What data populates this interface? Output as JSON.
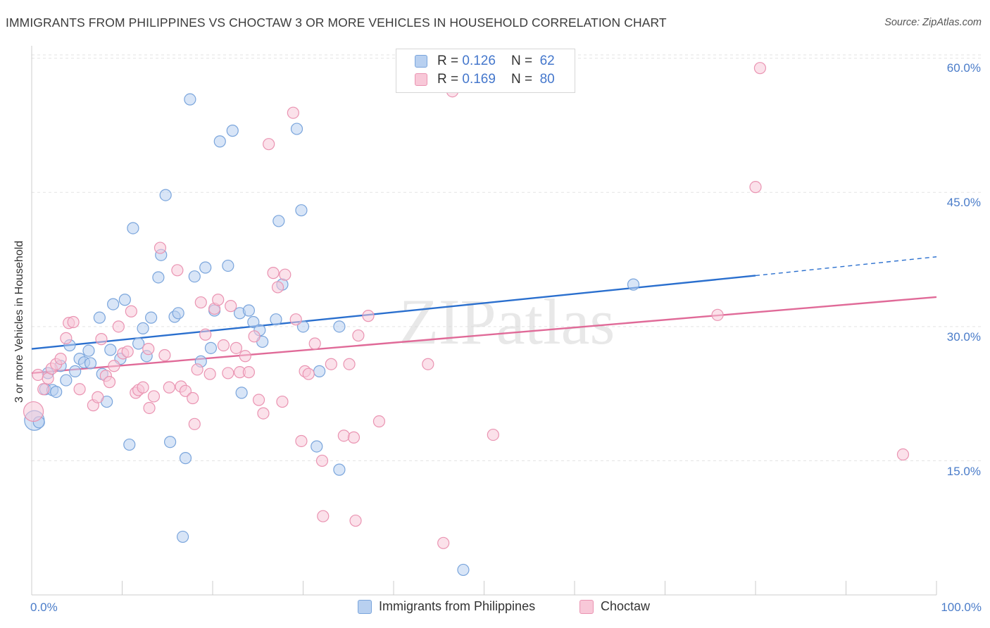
{
  "title": "IMMIGRANTS FROM PHILIPPINES VS CHOCTAW 3 OR MORE VEHICLES IN HOUSEHOLD CORRELATION CHART",
  "source": "Source: ZipAtlas.com",
  "watermark": "ZIPatlas",
  "legend_top": {
    "rows": [
      {
        "r_label": "R =",
        "r_value": "0.126",
        "n_label": "N =",
        "n_value": "62"
      },
      {
        "r_label": "R =",
        "r_value": "0.169",
        "n_label": "N =",
        "n_value": "80"
      }
    ]
  },
  "legend_bottom": [
    "Immigrants from Philippines",
    "Choctaw"
  ],
  "x_tick_labels": {
    "left": "0.0%",
    "right": "100.0%"
  },
  "y_tick_labels": [
    "60.0%",
    "45.0%",
    "30.0%",
    "15.0%"
  ],
  "colors": {
    "blue_fill": "#b8d0f0",
    "blue_stroke": "#7aa5dc",
    "blue_line": "#2a6fce",
    "pink_fill": "#f8c8d8",
    "pink_stroke": "#ea94b2",
    "pink_line": "#e06a98",
    "tick_label": "#4a7cc9",
    "grid": "#e3e3e3"
  },
  "chart_data": {
    "type": "scatter",
    "title": "IMMIGRANTS FROM PHILIPPINES VS CHOCTAW 3 OR MORE VEHICLES IN HOUSEHOLD CORRELATION CHART",
    "xlabel": "",
    "ylabel": "3 or more Vehicles in Household",
    "xlim": [
      0,
      100
    ],
    "ylim": [
      0,
      61
    ],
    "y_ticks": [
      15,
      30,
      45,
      60
    ],
    "grid": true,
    "legend_position": "bottom",
    "series": [
      {
        "name": "Immigrants from Philippines",
        "R": 0.126,
        "N": 62,
        "trend": {
          "x0": 0,
          "y0": 27.5,
          "x1": 80,
          "y1": 35.7,
          "dashed_to_x": 100,
          "dashed_to_y": 37.8
        },
        "points": [
          [
            0.3,
            19.5
          ],
          [
            0.8,
            19.3
          ],
          [
            1.5,
            23.0
          ],
          [
            1.8,
            24.8
          ],
          [
            2.3,
            22.9
          ],
          [
            2.7,
            22.7
          ],
          [
            3.2,
            25.6
          ],
          [
            3.8,
            24.0
          ],
          [
            4.2,
            27.9
          ],
          [
            4.8,
            25.0
          ],
          [
            5.3,
            26.4
          ],
          [
            5.8,
            26.0
          ],
          [
            6.3,
            27.3
          ],
          [
            6.5,
            25.9
          ],
          [
            7.5,
            31.0
          ],
          [
            7.8,
            24.7
          ],
          [
            8.3,
            21.6
          ],
          [
            8.7,
            27.4
          ],
          [
            9.0,
            32.5
          ],
          [
            9.8,
            26.4
          ],
          [
            10.3,
            33.0
          ],
          [
            10.8,
            16.8
          ],
          [
            11.2,
            41.0
          ],
          [
            11.8,
            28.1
          ],
          [
            12.3,
            29.8
          ],
          [
            12.7,
            26.7
          ],
          [
            13.2,
            31.0
          ],
          [
            14.0,
            35.5
          ],
          [
            14.3,
            38.0
          ],
          [
            14.8,
            44.7
          ],
          [
            15.3,
            17.1
          ],
          [
            15.8,
            31.1
          ],
          [
            16.2,
            31.5
          ],
          [
            16.7,
            6.5
          ],
          [
            17.0,
            15.3
          ],
          [
            17.5,
            55.4
          ],
          [
            18.0,
            35.6
          ],
          [
            18.7,
            26.1
          ],
          [
            19.2,
            36.6
          ],
          [
            19.8,
            27.6
          ],
          [
            20.2,
            31.8
          ],
          [
            20.8,
            50.7
          ],
          [
            21.7,
            36.8
          ],
          [
            22.2,
            51.9
          ],
          [
            23.0,
            31.5
          ],
          [
            23.2,
            22.6
          ],
          [
            24.0,
            31.8
          ],
          [
            24.5,
            30.5
          ],
          [
            25.2,
            29.6
          ],
          [
            25.5,
            28.3
          ],
          [
            27.0,
            30.8
          ],
          [
            27.3,
            41.8
          ],
          [
            27.7,
            34.7
          ],
          [
            29.3,
            52.1
          ],
          [
            29.8,
            43.0
          ],
          [
            30.0,
            30.0
          ],
          [
            31.5,
            16.6
          ],
          [
            31.8,
            25.0
          ],
          [
            34.0,
            14.0
          ],
          [
            34.0,
            30.0
          ],
          [
            47.7,
            2.8
          ],
          [
            66.5,
            34.7
          ]
        ]
      },
      {
        "name": "Choctaw",
        "R": 0.169,
        "N": 80,
        "trend": {
          "x0": 0,
          "y0": 24.8,
          "x1": 100,
          "y1": 33.3
        },
        "points": [
          [
            0.2,
            20.5
          ],
          [
            0.7,
            24.6
          ],
          [
            1.3,
            23.0
          ],
          [
            1.8,
            24.2
          ],
          [
            2.2,
            25.3
          ],
          [
            2.7,
            25.8
          ],
          [
            3.2,
            26.4
          ],
          [
            3.8,
            28.7
          ],
          [
            4.1,
            30.4
          ],
          [
            4.6,
            30.5
          ],
          [
            5.3,
            23.0
          ],
          [
            6.8,
            21.2
          ],
          [
            7.3,
            22.1
          ],
          [
            7.7,
            28.6
          ],
          [
            8.2,
            24.5
          ],
          [
            8.6,
            23.8
          ],
          [
            9.1,
            25.6
          ],
          [
            9.6,
            30.0
          ],
          [
            10.1,
            27.0
          ],
          [
            10.6,
            27.2
          ],
          [
            11.0,
            31.7
          ],
          [
            11.5,
            22.6
          ],
          [
            11.8,
            22.9
          ],
          [
            12.3,
            23.2
          ],
          [
            12.9,
            27.5
          ],
          [
            13.0,
            20.9
          ],
          [
            13.5,
            22.2
          ],
          [
            14.2,
            38.8
          ],
          [
            14.7,
            26.8
          ],
          [
            15.2,
            23.2
          ],
          [
            16.1,
            36.3
          ],
          [
            16.5,
            23.3
          ],
          [
            17.0,
            22.8
          ],
          [
            17.8,
            22.0
          ],
          [
            18.0,
            19.1
          ],
          [
            18.3,
            25.2
          ],
          [
            18.7,
            32.7
          ],
          [
            19.2,
            29.1
          ],
          [
            19.7,
            24.7
          ],
          [
            20.2,
            32.0
          ],
          [
            20.6,
            33.0
          ],
          [
            21.2,
            27.9
          ],
          [
            21.7,
            24.8
          ],
          [
            22.0,
            32.3
          ],
          [
            22.6,
            27.6
          ],
          [
            23.0,
            24.9
          ],
          [
            23.6,
            26.7
          ],
          [
            24.0,
            24.9
          ],
          [
            24.6,
            28.9
          ],
          [
            25.1,
            21.8
          ],
          [
            25.6,
            20.3
          ],
          [
            26.2,
            50.4
          ],
          [
            26.7,
            36.0
          ],
          [
            27.2,
            34.4
          ],
          [
            27.7,
            21.6
          ],
          [
            28.0,
            35.8
          ],
          [
            28.9,
            53.9
          ],
          [
            29.2,
            30.8
          ],
          [
            29.8,
            17.2
          ],
          [
            30.2,
            25.0
          ],
          [
            30.6,
            24.7
          ],
          [
            31.3,
            28.1
          ],
          [
            32.1,
            15.0
          ],
          [
            32.2,
            8.8
          ],
          [
            33.1,
            25.8
          ],
          [
            34.5,
            17.8
          ],
          [
            35.1,
            25.8
          ],
          [
            35.6,
            17.6
          ],
          [
            35.8,
            8.3
          ],
          [
            36.1,
            29.0
          ],
          [
            37.2,
            31.2
          ],
          [
            38.4,
            19.4
          ],
          [
            43.8,
            25.8
          ],
          [
            45.5,
            5.8
          ],
          [
            46.5,
            56.3
          ],
          [
            51.0,
            17.9
          ],
          [
            75.8,
            31.3
          ],
          [
            80.0,
            45.6
          ],
          [
            80.5,
            58.9
          ],
          [
            96.3,
            15.7
          ]
        ]
      }
    ]
  }
}
